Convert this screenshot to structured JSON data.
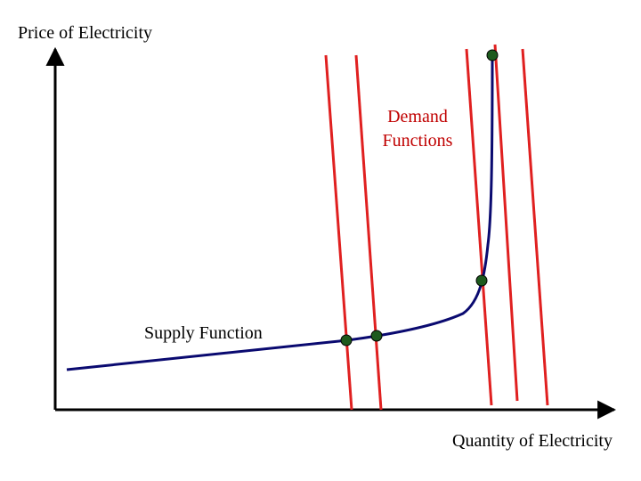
{
  "axes": {
    "y_label": "Price of Electricity",
    "x_label": "Quantity of Electricity"
  },
  "labels": {
    "demand": [
      "Demand",
      "Functions"
    ],
    "supply": "Supply Function"
  }
}
